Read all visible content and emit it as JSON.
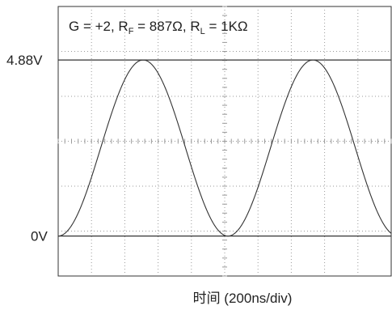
{
  "chart_data": {
    "type": "line",
    "annotation": {
      "prefix": "G = +2, R",
      "rf_sub": "F",
      "mid": " = 887Ω, R",
      "rl_sub": "L",
      "suffix": " = 1KΩ"
    },
    "xlabel": "时间 (200ns/div)",
    "divisions": {
      "x": 10,
      "y": 6
    },
    "ref_levels": [
      {
        "label": "4.88V",
        "value": 4.88
      },
      {
        "label": "0V",
        "value": 0
      }
    ],
    "series": [
      {
        "waveform": "sine",
        "period_divs": 5.1,
        "first_peak_div": 2.55,
        "max": 4.88,
        "min": 0
      }
    ],
    "grid": "dotted",
    "colors": {
      "trace": "#333333",
      "grid": "#9a9a9a",
      "frame": "#333333"
    }
  }
}
